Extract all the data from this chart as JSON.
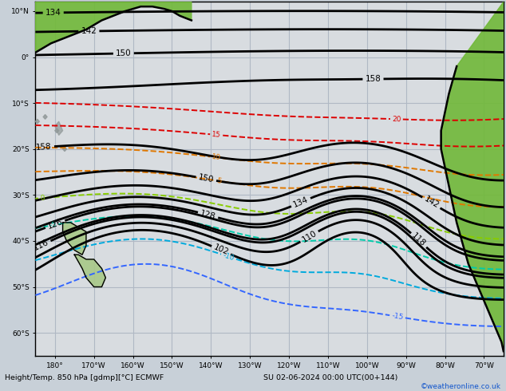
{
  "title": "Height/Temp. 850 hPa [gdmp][°C] ECMWF",
  "subtitle": "SU 02-06-2024 00:00 UTC(00+144)",
  "credit": "©weatheronline.co.uk",
  "bg_color": "#c8d0d8",
  "map_color": "#d8dce0",
  "grid_color": "#b0b8c4",
  "figsize": [
    6.34,
    4.9
  ],
  "dpi": 100,
  "xlim": [
    -185,
    -65
  ],
  "ylim": [
    -65,
    12
  ],
  "xticks": [
    -180,
    -170,
    -160,
    -150,
    -140,
    -130,
    -120,
    -110,
    -100,
    -90,
    -80,
    -70
  ],
  "yticks": [
    -60,
    -50,
    -40,
    -30,
    -20,
    -10,
    0,
    10
  ],
  "xlabels": [
    "180°",
    "170°W",
    "160°W",
    "150°W",
    "140°W",
    "130°W",
    "120°W",
    "110°W",
    "100°W",
    "90°W",
    "80°W",
    "70°W"
  ],
  "ylabels": [
    "60°S",
    "50°S",
    "40°S",
    "30°S",
    "20°S",
    "10°S",
    "0°",
    "10°N"
  ],
  "height_levels": [
    102,
    110,
    116,
    118,
    126,
    128,
    134,
    142,
    150,
    158
  ],
  "land_color_nz": "#a8c888",
  "land_color_sa": "#70b838",
  "land_color_sa2": "#a0c870",
  "land_color_islands": "#909898",
  "coast_color": "#000000"
}
